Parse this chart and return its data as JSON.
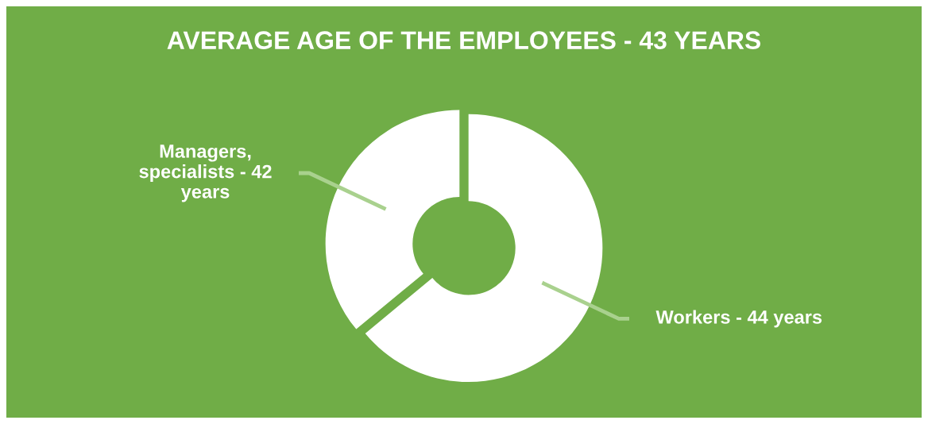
{
  "chart_data": {
    "type": "donut",
    "title": "AVERAGE AGE OF THE EMPLOYEES - 43 YEARS",
    "categories": [
      "Workers - 44 years",
      "Managers,\nspecialists - 42\nyears"
    ],
    "values": [
      64,
      36
    ],
    "colors": [
      "#ffffff",
      "#ffffff"
    ]
  }
}
